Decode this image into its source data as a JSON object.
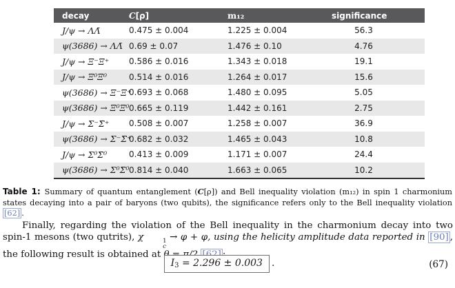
{
  "table": {
    "header": {
      "decay": "decay",
      "c_symbol": "C",
      "c_rest": "[ρ]",
      "m12": "m₁₂",
      "significance": "significance"
    },
    "colors": {
      "header_bg": "#59595B",
      "header_text": "#ffffff",
      "row_shade": "#E8E8E8"
    },
    "rows": [
      {
        "decay": "J/ψ → ΛΛ̄",
        "c_rho": "0.475 ± 0.004",
        "m12": "1.225 ± 0.004",
        "significance": "56.3"
      },
      {
        "decay": "ψ(3686) → ΛΛ̄",
        "c_rho": "0.69 ± 0.07",
        "m12": "1.476 ± 0.10",
        "significance": "4.76"
      },
      {
        "decay": "J/ψ → Ξ⁻Ξ̄⁺",
        "c_rho": "0.586 ± 0.016",
        "m12": "1.343 ± 0.018",
        "significance": "19.1"
      },
      {
        "decay": "J/ψ → Ξ⁰Ξ̄⁰",
        "c_rho": "0.514 ± 0.016",
        "m12": "1.264 ± 0.017",
        "significance": "15.6"
      },
      {
        "decay": "ψ(3686) → Ξ⁻Ξ̄⁺",
        "c_rho": "0.693 ± 0.068",
        "m12": "1.480 ± 0.095",
        "significance": "5.05"
      },
      {
        "decay": "ψ(3686) → Ξ⁰Ξ̄⁰",
        "c_rho": "0.665 ± 0.119",
        "m12": "1.442 ± 0.161",
        "significance": "2.75"
      },
      {
        "decay": "J/ψ → Σ⁻Σ̄⁺",
        "c_rho": "0.508 ± 0.007",
        "m12": "1.258 ± 0.007",
        "significance": "36.9"
      },
      {
        "decay": "ψ(3686) → Σ⁻Σ̄⁺",
        "c_rho": "0.682 ± 0.032",
        "m12": "1.465 ± 0.043",
        "significance": "10.8"
      },
      {
        "decay": "J/ψ → Σ⁰Σ̄⁰",
        "c_rho": "0.413 ± 0.009",
        "m12": "1.171 ± 0.007",
        "significance": "24.4"
      },
      {
        "decay": "ψ(3686) → Σ⁰Σ̄⁰",
        "c_rho": "0.814 ± 0.040",
        "m12": "1.663 ± 0.065",
        "significance": "10.2"
      }
    ]
  },
  "caption": {
    "label": "Table 1:",
    "part1": "Summary of quantum entanglement (",
    "c_symbol": "C",
    "part2": "[ρ]) and Bell inequality violation (m₁₂) in spin 1 charmonium states decaying into a pair of baryons (two qubits), the significance refers only to the Bell inequality violation ",
    "cite62": "[62]",
    "part3": "."
  },
  "paragraph": {
    "part1": "Finally, regarding the violation of the Bell inequality in the charmonium decay into two spin-1 mesons (two qutrits), ",
    "chi": "χ",
    "chi_sup": "1",
    "chi_sub": "c",
    "part2": " → φ + φ, using the helicity amplitude data reported in ",
    "cite90": "[90]",
    "part3": ", the following result is obtained at ",
    "theta": "θ = π/2 ",
    "cite62": "[62]",
    "part4": ":"
  },
  "equation": {
    "lhs": "I",
    "lhs_sub": "3",
    "rhs": " = 2.296 ± 0.003",
    "period": ".",
    "number": "(67)"
  },
  "link_color": "#6b7db8"
}
